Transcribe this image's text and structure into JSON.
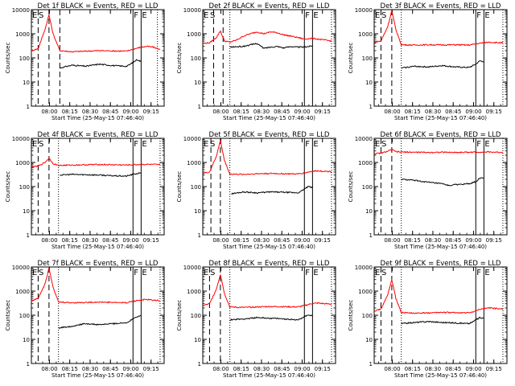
{
  "figure": {
    "common_ylabel": "Counts/sec",
    "common_xlabel": "Start Time (25-May-15 07:46:40)",
    "xticks": [
      "08:00",
      "08:15",
      "08:30",
      "08:45",
      "09:00",
      "09:15"
    ],
    "yticks": [
      "1",
      "10",
      "100",
      "1000",
      "10000"
    ],
    "colors": {
      "events": "#000000",
      "lld": "#ff0000"
    }
  },
  "chart_data": [
    {
      "type": "line",
      "title": "Det 1f BLACK = Events, RED = LLD",
      "x_unit": "minutes since 07:46:40",
      "ylog": true,
      "ylim": [
        1,
        10000
      ],
      "xlim": [
        0,
        98
      ],
      "flags_left": [
        "E",
        "S"
      ],
      "flags_right": [
        "F",
        "E"
      ],
      "solid_lines": [
        75,
        81
      ],
      "dashed_lines": [
        5,
        13,
        21
      ],
      "dotted_lines": [
        93
      ],
      "series": [
        {
          "name": "Events",
          "color": "#000000",
          "x": [
            21,
            30,
            40,
            50,
            60,
            70,
            72,
            74,
            78,
            81
          ],
          "y": [
            38,
            50,
            45,
            55,
            48,
            45,
            50,
            60,
            85,
            70
          ]
        },
        {
          "name": "LLD",
          "color": "#ff0000",
          "x": [
            0,
            5,
            10,
            13,
            16,
            21,
            30,
            40,
            50,
            60,
            70,
            75,
            80,
            85,
            90,
            95
          ],
          "y": [
            200,
            240,
            1500,
            6000,
            1000,
            200,
            180,
            190,
            200,
            195,
            190,
            230,
            270,
            300,
            280,
            220
          ]
        }
      ]
    },
    {
      "type": "line",
      "title": "Det 2f BLACK = Events, RED = LLD",
      "x_unit": "minutes since 07:46:40",
      "ylog": true,
      "ylim": [
        1,
        10000
      ],
      "xlim": [
        0,
        98
      ],
      "flags_left": [
        "E",
        "S"
      ],
      "flags_right": [
        "F",
        "E"
      ],
      "solid_lines": [
        75,
        81
      ],
      "dashed_lines": [
        8,
        15
      ],
      "dotted_lines": [
        20,
        95
      ],
      "series": [
        {
          "name": "Events",
          "color": "#000000",
          "x": [
            20,
            30,
            40,
            45,
            50,
            55,
            60,
            65,
            70,
            75,
            78,
            81
          ],
          "y": [
            280,
            300,
            400,
            250,
            280,
            300,
            260,
            300,
            280,
            280,
            300,
            320
          ]
        },
        {
          "name": "LLD",
          "color": "#ff0000",
          "x": [
            0,
            5,
            10,
            13,
            16,
            20,
            25,
            30,
            35,
            40,
            45,
            50,
            55,
            60,
            65,
            70,
            75,
            80,
            85,
            90,
            95
          ],
          "y": [
            400,
            420,
            700,
            1300,
            500,
            450,
            550,
            800,
            1000,
            1200,
            1000,
            1200,
            1100,
            900,
            800,
            700,
            600,
            650,
            600,
            550,
            500
          ]
        }
      ]
    },
    {
      "type": "line",
      "title": "Det 3f BLACK = Events, RED = LLD",
      "x_unit": "minutes since 07:46:40",
      "ylog": true,
      "ylim": [
        1,
        10000
      ],
      "xlim": [
        0,
        98
      ],
      "flags_left": [
        "E",
        "S"
      ],
      "flags_right": [
        "F",
        "E"
      ],
      "solid_lines": [
        75,
        81
      ],
      "dashed_lines": [
        5,
        13
      ],
      "dotted_lines": [
        20,
        95
      ],
      "series": [
        {
          "name": "Events",
          "color": "#000000",
          "x": [
            20,
            30,
            40,
            50,
            60,
            70,
            72,
            75,
            78,
            81
          ],
          "y": [
            38,
            45,
            42,
            48,
            42,
            40,
            45,
            55,
            75,
            70
          ]
        },
        {
          "name": "LLD",
          "color": "#ff0000",
          "x": [
            0,
            5,
            10,
            13,
            16,
            20,
            30,
            40,
            50,
            60,
            70,
            75,
            80,
            85,
            90,
            95
          ],
          "y": [
            450,
            500,
            2000,
            9000,
            1500,
            350,
            340,
            350,
            345,
            350,
            340,
            380,
            420,
            450,
            430,
            420
          ]
        }
      ]
    },
    {
      "type": "line",
      "title": "Det 4f BLACK = Events, RED = LLD",
      "x_unit": "minutes since 07:46:40",
      "ylog": true,
      "ylim": [
        1,
        10000
      ],
      "xlim": [
        0,
        98
      ],
      "flags_left": [
        "E",
        "S"
      ],
      "flags_right": [
        "F",
        "E"
      ],
      "solid_lines": [
        75,
        81
      ],
      "dashed_lines": [
        5,
        13
      ],
      "dotted_lines": [
        20,
        95
      ],
      "series": [
        {
          "name": "Events",
          "color": "#000000",
          "x": [
            21,
            30,
            40,
            50,
            60,
            70,
            73,
            76,
            79,
            81
          ],
          "y": [
            300,
            320,
            310,
            300,
            280,
            270,
            300,
            330,
            350,
            380
          ]
        },
        {
          "name": "LLD",
          "color": "#ff0000",
          "x": [
            0,
            5,
            10,
            13,
            16,
            20,
            30,
            40,
            50,
            60,
            70,
            75,
            80,
            85,
            90,
            95
          ],
          "y": [
            650,
            700,
            1000,
            1500,
            900,
            750,
            780,
            800,
            820,
            800,
            780,
            800,
            820,
            830,
            820,
            800
          ]
        }
      ]
    },
    {
      "type": "line",
      "title": "Det 5f BLACK = Events, RED = LLD",
      "x_unit": "minutes since 07:46:40",
      "ylog": true,
      "ylim": [
        1,
        10000
      ],
      "xlim": [
        0,
        98
      ],
      "flags_left": [
        "E",
        "S"
      ],
      "flags_right": [
        "F",
        "E"
      ],
      "solid_lines": [
        75,
        81
      ],
      "dashed_lines": [
        6,
        13
      ],
      "dotted_lines": [
        20,
        95
      ],
      "series": [
        {
          "name": "Events",
          "color": "#000000",
          "x": [
            21,
            30,
            40,
            50,
            60,
            70,
            72,
            75,
            78,
            81
          ],
          "y": [
            50,
            60,
            55,
            60,
            58,
            55,
            60,
            80,
            100,
            90
          ]
        },
        {
          "name": "LLD",
          "color": "#ff0000",
          "x": [
            0,
            5,
            10,
            13,
            16,
            20,
            30,
            40,
            50,
            60,
            70,
            75,
            80,
            85,
            90,
            95
          ],
          "y": [
            350,
            400,
            1800,
            8000,
            1200,
            330,
            320,
            340,
            350,
            340,
            330,
            370,
            420,
            450,
            430,
            420
          ]
        }
      ]
    },
    {
      "type": "line",
      "title": "Det 6f BLACK = Events, RED = LLD",
      "x_unit": "minutes since 07:46:40",
      "ylog": true,
      "ylim": [
        1,
        10000
      ],
      "xlim": [
        0,
        98
      ],
      "flags_left": [
        "E",
        "S"
      ],
      "flags_right": [
        "F",
        "E"
      ],
      "solid_lines": [
        75,
        81
      ],
      "dashed_lines": [
        5,
        13
      ],
      "dotted_lines": [
        20,
        95
      ],
      "series": [
        {
          "name": "Events",
          "color": "#000000",
          "x": [
            20,
            30,
            40,
            50,
            55,
            60,
            65,
            70,
            75,
            78,
            81
          ],
          "y": [
            200,
            180,
            150,
            130,
            110,
            120,
            125,
            130,
            160,
            220,
            230
          ]
        },
        {
          "name": "LLD",
          "color": "#ff0000",
          "x": [
            0,
            5,
            10,
            13,
            16,
            20,
            30,
            40,
            50,
            60,
            70,
            75,
            80,
            85,
            90,
            95
          ],
          "y": [
            2300,
            2400,
            2900,
            3400,
            2800,
            2700,
            2650,
            2600,
            2650,
            2600,
            2650,
            2650,
            2700,
            2700,
            2650,
            2600
          ]
        }
      ]
    },
    {
      "type": "line",
      "title": "Det 7f BLACK = Events, RED = LLD",
      "x_unit": "minutes since 07:46:40",
      "ylog": true,
      "ylim": [
        1,
        10000
      ],
      "xlim": [
        0,
        98
      ],
      "flags_left": [
        "E",
        "S"
      ],
      "flags_right": [
        "F",
        "E"
      ],
      "solid_lines": [
        75,
        81
      ],
      "dashed_lines": [
        5,
        13
      ],
      "dotted_lines": [
        20,
        95
      ],
      "series": [
        {
          "name": "Events",
          "color": "#000000",
          "x": [
            20,
            30,
            35,
            40,
            50,
            60,
            70,
            73,
            76,
            79,
            81
          ],
          "y": [
            30,
            35,
            40,
            45,
            40,
            45,
            48,
            60,
            80,
            90,
            100
          ]
        },
        {
          "name": "LLD",
          "color": "#ff0000",
          "x": [
            0,
            5,
            10,
            13,
            16,
            20,
            30,
            40,
            50,
            60,
            70,
            75,
            80,
            85,
            90,
            95
          ],
          "y": [
            400,
            500,
            2000,
            9000,
            1500,
            350,
            330,
            340,
            350,
            340,
            330,
            380,
            420,
            450,
            420,
            400
          ]
        }
      ]
    },
    {
      "type": "line",
      "title": "Det 8f BLACK = Events, RED = LLD",
      "x_unit": "minutes since 07:46:40",
      "ylog": true,
      "ylim": [
        1,
        10000
      ],
      "xlim": [
        0,
        98
      ],
      "flags_left": [
        "E",
        "S"
      ],
      "flags_right": [
        "F",
        "E"
      ],
      "solid_lines": [
        75,
        81
      ],
      "dashed_lines": [
        5,
        13
      ],
      "dotted_lines": [
        20,
        95
      ],
      "series": [
        {
          "name": "Events",
          "color": "#000000",
          "x": [
            20,
            30,
            40,
            50,
            60,
            70,
            72,
            75,
            78,
            81
          ],
          "y": [
            65,
            70,
            80,
            75,
            70,
            65,
            70,
            90,
            100,
            95
          ]
        },
        {
          "name": "LLD",
          "color": "#ff0000",
          "x": [
            0,
            5,
            10,
            13,
            16,
            20,
            30,
            40,
            50,
            60,
            70,
            75,
            80,
            85,
            90,
            95
          ],
          "y": [
            250,
            300,
            1200,
            5000,
            800,
            220,
            210,
            220,
            230,
            225,
            220,
            250,
            300,
            320,
            300,
            290
          ]
        }
      ]
    },
    {
      "type": "line",
      "title": "Det 9f BLACK = Events, RED = LLD",
      "x_unit": "minutes since 07:46:40",
      "ylog": true,
      "ylim": [
        1,
        10000
      ],
      "xlim": [
        0,
        98
      ],
      "flags_left": [
        "E",
        "S"
      ],
      "flags_right": [
        "F",
        "E"
      ],
      "solid_lines": [
        75,
        81
      ],
      "dashed_lines": [
        5,
        13
      ],
      "dotted_lines": [
        20,
        95
      ],
      "series": [
        {
          "name": "Events",
          "color": "#000000",
          "x": [
            20,
            30,
            40,
            50,
            60,
            70,
            72,
            75,
            78,
            81
          ],
          "y": [
            45,
            50,
            55,
            50,
            48,
            45,
            50,
            65,
            80,
            75
          ]
        },
        {
          "name": "LLD",
          "color": "#ff0000",
          "x": [
            0,
            5,
            10,
            13,
            16,
            20,
            30,
            40,
            50,
            60,
            70,
            75,
            80,
            85,
            90,
            95
          ],
          "y": [
            150,
            180,
            700,
            3000,
            500,
            130,
            120,
            125,
            130,
            128,
            125,
            150,
            190,
            200,
            190,
            180
          ]
        }
      ]
    }
  ]
}
